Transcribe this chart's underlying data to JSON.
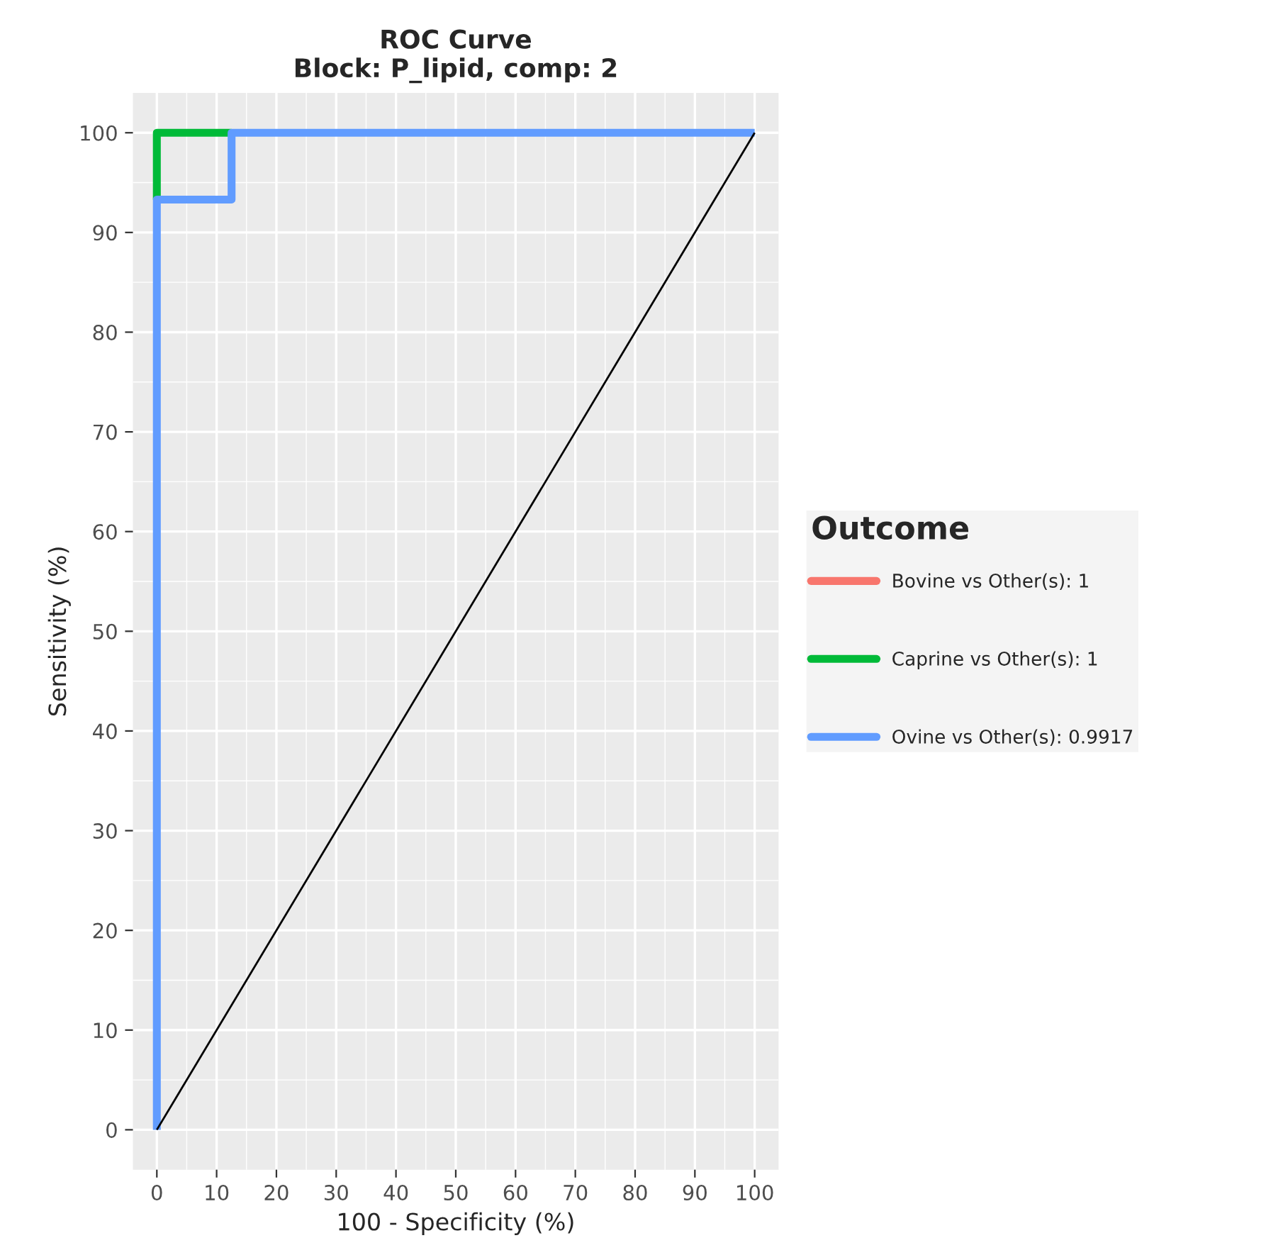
{
  "chart_data": {
    "type": "line",
    "title": "ROC Curve\nBlock: P_lipid, comp: 2",
    "xlabel": "100 - Specificity (%)",
    "ylabel": "Sensitivity (%)",
    "legend_title": "Outcome",
    "legend": "right",
    "grid": true,
    "xlim": [
      -4,
      104
    ],
    "ylim": [
      -4,
      104
    ],
    "xticks": [
      0,
      10,
      20,
      30,
      40,
      50,
      60,
      70,
      80,
      90,
      100
    ],
    "yticks": [
      0,
      10,
      20,
      30,
      40,
      50,
      60,
      70,
      80,
      90,
      100
    ],
    "series": [
      {
        "name": "Bovine vs Other(s): 1",
        "color": "#f8766d"
      },
      {
        "name": "Caprine vs Other(s): 1",
        "color": "#00ba38",
        "x": [
          0,
          0,
          12.5
        ],
        "values": [
          93.3,
          100,
          100
        ]
      },
      {
        "name": "Ovine vs Other(s): 0.9917",
        "color": "#619cff",
        "x": [
          0,
          0,
          12.5,
          12.5,
          100
        ],
        "values": [
          0,
          93.3,
          93.3,
          100,
          100
        ]
      },
      {
        "color": "#000000",
        "x": [
          0,
          100
        ],
        "values": [
          0,
          100
        ]
      }
    ]
  }
}
